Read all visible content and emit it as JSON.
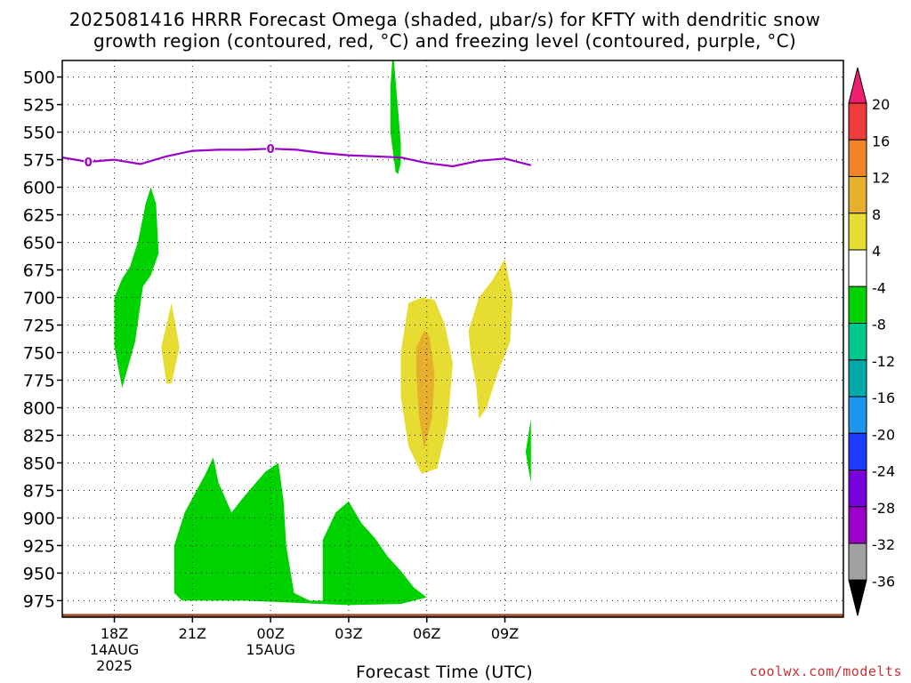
{
  "title_lines": [
    "2025081416 HRRR Forecast Omega (shaded, μbar/s) for KFTY with dendritic snow",
    "growth region (contoured, red, °C) and freezing level (contoured, purple, °C)"
  ],
  "credit": "coolwx.com/modelts",
  "chart_data": {
    "type": "contour",
    "title": "2025081416 HRRR Forecast Omega (shaded, μbar/s) for KFTY with dendritic snow growth region (contoured, red, °C) and freezing level (contoured, purple, °C)",
    "xlabel": "Forecast Time (UTC)",
    "ylabel": "",
    "y_axis": "pressure (mb), inverted",
    "xlim_hours": [
      16,
      46
    ],
    "ylim": [
      485,
      990
    ],
    "y_ticks": [
      500,
      525,
      550,
      575,
      600,
      625,
      650,
      675,
      700,
      725,
      750,
      775,
      800,
      825,
      850,
      875,
      900,
      925,
      950,
      975
    ],
    "x_ticks": [
      {
        "hour": 18,
        "label": "18Z",
        "sub": [
          "14AUG",
          "2025"
        ]
      },
      {
        "hour": 21,
        "label": "21Z",
        "sub": []
      },
      {
        "hour": 24,
        "label": "00Z",
        "sub": [
          "15AUG"
        ]
      },
      {
        "hour": 27,
        "label": "03Z",
        "sub": []
      },
      {
        "hour": 30,
        "label": "06Z",
        "sub": []
      },
      {
        "hour": 33,
        "label": "09Z",
        "sub": []
      }
    ],
    "grid": "dotted",
    "freezing_level": {
      "label": "0",
      "color": "#9a00c8",
      "points": [
        [
          16,
          573
        ],
        [
          17,
          577
        ],
        [
          18,
          575
        ],
        [
          19,
          579
        ],
        [
          20,
          572
        ],
        [
          21,
          567
        ],
        [
          22,
          566
        ],
        [
          23,
          566
        ],
        [
          24,
          565
        ],
        [
          25,
          566
        ],
        [
          26,
          569
        ],
        [
          27,
          571
        ],
        [
          28,
          572
        ],
        [
          29,
          573
        ],
        [
          30,
          578
        ],
        [
          31,
          581
        ],
        [
          32,
          576
        ],
        [
          33,
          574
        ],
        [
          34,
          580
        ]
      ]
    },
    "colorbar": {
      "labels": [
        "20",
        "16",
        "12",
        "8",
        "4",
        "-4",
        "-8",
        "-12",
        "-16",
        "-20",
        "-24",
        "-28",
        "-32",
        "-36"
      ],
      "colors": [
        "#f01e6e",
        "#ef3c3c",
        "#f08228",
        "#e6af2d",
        "#e6dc32",
        "#ffffff",
        "#00d200",
        "#00c88c",
        "#00aaaa",
        "#1e96f0",
        "#1e3cff",
        "#7800dc",
        "#9b00c8",
        "#a0a0a0",
        "#000000"
      ]
    },
    "shaded_regions": [
      {
        "level": "-4 to -8",
        "color": "#00d200",
        "points": [
          [
            18.3,
            782
          ],
          [
            18.0,
            744
          ],
          [
            18.0,
            700
          ],
          [
            18.3,
            683
          ],
          [
            18.6,
            672
          ],
          [
            18.9,
            650
          ],
          [
            19.2,
            615
          ],
          [
            19.4,
            600
          ],
          [
            19.6,
            615
          ],
          [
            19.7,
            660
          ],
          [
            19.4,
            680
          ],
          [
            19.1,
            690
          ],
          [
            18.8,
            740
          ]
        ]
      },
      {
        "level": "4 to 8",
        "color": "#e6dc32",
        "points": [
          [
            20.0,
            778
          ],
          [
            19.8,
            745
          ],
          [
            20.2,
            705
          ],
          [
            20.5,
            745
          ],
          [
            20.2,
            778
          ]
        ]
      },
      {
        "level": "-4 to -8",
        "color": "#00d200",
        "points": [
          [
            28.8,
            586
          ],
          [
            28.6,
            550
          ],
          [
            28.6,
            510
          ],
          [
            28.7,
            475
          ],
          [
            28.9,
            530
          ],
          [
            29.0,
            560
          ],
          [
            29.0,
            578
          ],
          [
            28.9,
            588
          ]
        ]
      },
      {
        "level": "-4 to -8",
        "color": "#00d200",
        "points": [
          [
            20.3,
            968
          ],
          [
            20.3,
            925
          ],
          [
            20.7,
            895
          ],
          [
            21.5,
            860
          ],
          [
            21.8,
            845
          ],
          [
            22.0,
            868
          ],
          [
            22.5,
            895
          ],
          [
            23.0,
            880
          ],
          [
            23.8,
            858
          ],
          [
            24.3,
            850
          ],
          [
            24.5,
            885
          ],
          [
            24.6,
            925
          ],
          [
            24.9,
            968
          ],
          [
            25.5,
            975
          ],
          [
            26.0,
            975
          ],
          [
            26.0,
            920
          ],
          [
            26.5,
            895
          ],
          [
            27.0,
            885
          ],
          [
            27.5,
            905
          ],
          [
            28.0,
            918
          ],
          [
            28.5,
            935
          ],
          [
            29.0,
            948
          ],
          [
            29.5,
            963
          ],
          [
            30.0,
            972
          ],
          [
            29.0,
            978
          ],
          [
            27.0,
            979
          ],
          [
            25.0,
            977
          ],
          [
            23.0,
            975
          ],
          [
            22.0,
            975
          ],
          [
            21.0,
            975
          ],
          [
            20.6,
            975
          ]
        ]
      },
      {
        "level": "4 to 8",
        "color": "#e6dc32",
        "points": [
          [
            29.0,
            750
          ],
          [
            29.3,
            705
          ],
          [
            29.8,
            700
          ],
          [
            30.3,
            702
          ],
          [
            30.7,
            725
          ],
          [
            31.0,
            760
          ],
          [
            30.8,
            815
          ],
          [
            30.4,
            855
          ],
          [
            29.8,
            860
          ],
          [
            29.3,
            835
          ],
          [
            29.0,
            790
          ]
        ]
      },
      {
        "level": "8 to 12",
        "color": "#e6af2d",
        "points": [
          [
            29.6,
            745
          ],
          [
            29.9,
            730
          ],
          [
            30.1,
            735
          ],
          [
            30.3,
            770
          ],
          [
            30.2,
            810
          ],
          [
            29.9,
            838
          ],
          [
            29.7,
            808
          ],
          [
            29.6,
            770
          ]
        ]
      },
      {
        "level": "4 to 8",
        "color": "#e6dc32",
        "points": [
          [
            31.7,
            755
          ],
          [
            31.6,
            730
          ],
          [
            32.0,
            700
          ],
          [
            32.5,
            685
          ],
          [
            33.0,
            665
          ],
          [
            33.3,
            700
          ],
          [
            33.2,
            740
          ],
          [
            32.7,
            770
          ],
          [
            32.3,
            800
          ],
          [
            32.0,
            810
          ],
          [
            31.9,
            780
          ]
        ]
      },
      {
        "level": "-4 to -8",
        "color": "#00d200",
        "points": [
          [
            34.0,
            810
          ],
          [
            33.8,
            840
          ],
          [
            33.9,
            855
          ],
          [
            34.0,
            868
          ]
        ]
      }
    ]
  }
}
